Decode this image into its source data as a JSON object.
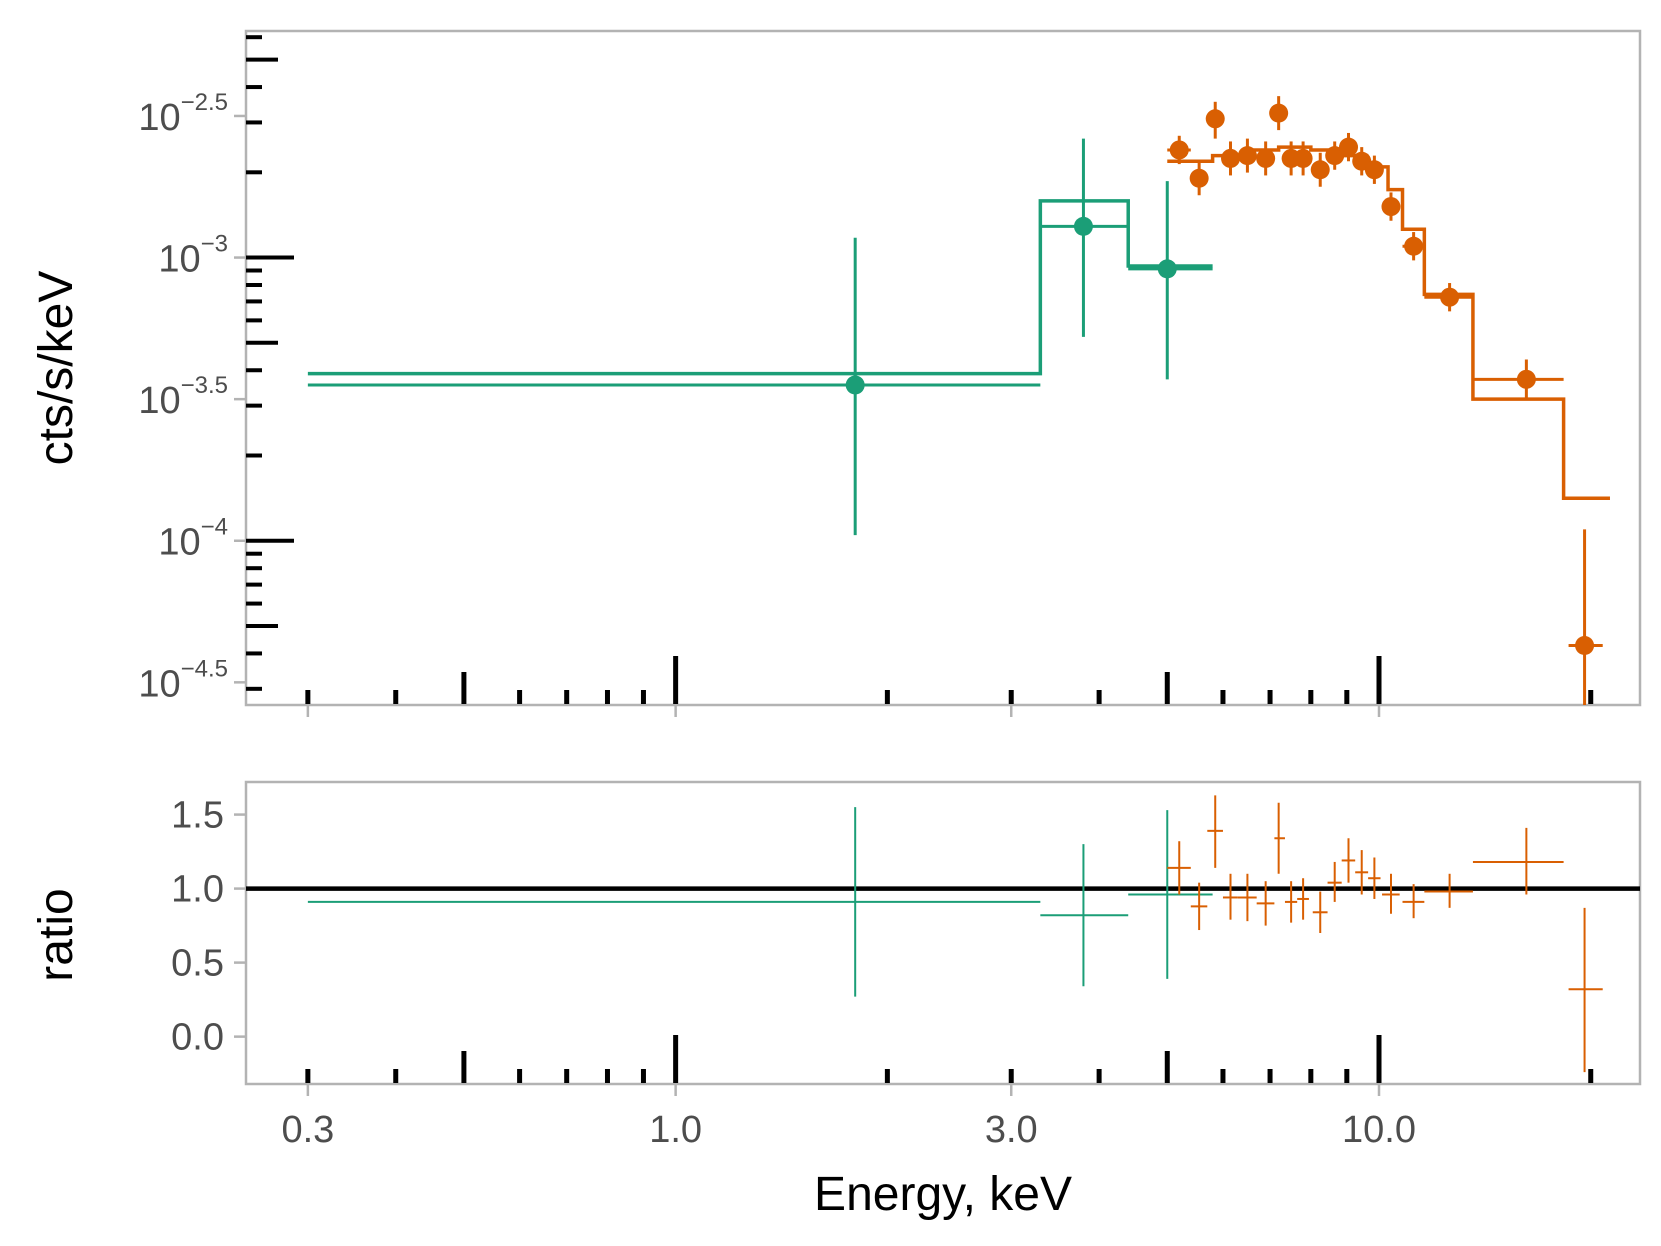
{
  "colors": {
    "green": "#1b9e77",
    "orange": "#d95f02",
    "black": "#000000",
    "frame": "#b3b3b3",
    "label": "#4d4d4d"
  },
  "chart_data": [
    {
      "type": "scatter",
      "panel": "spectrum",
      "ylabel": "cts/s/keV",
      "xscale": "log",
      "yscale": "log",
      "xlim": [
        0.245,
        23.5
      ],
      "ylim_log10": [
        -4.58,
        -2.2
      ],
      "yticks": [
        {
          "base": "10",
          "exp": "−2.5",
          "value": -2.5
        },
        {
          "base": "10",
          "exp": "−3",
          "value": -3
        },
        {
          "base": "10",
          "exp": "−3.5",
          "value": -3.5
        },
        {
          "base": "10",
          "exp": "−4",
          "value": -4
        },
        {
          "base": "10",
          "exp": "−4.5",
          "value": -4.5
        }
      ],
      "series": [
        {
          "name": "green",
          "points": [
            {
              "x": 1.8,
              "y": -3.45,
              "xlo": 0.3,
              "xhi": 3.3,
              "ylo": -3.98,
              "yhi": -2.93
            },
            {
              "x": 3.8,
              "y": -2.89,
              "xlo": 3.3,
              "xhi": 4.4,
              "ylo": -3.28,
              "yhi": -2.58
            },
            {
              "x": 5.0,
              "y": -3.04,
              "xlo": 4.4,
              "xhi": 5.8,
              "ylo": -3.43,
              "yhi": -2.73
            }
          ],
          "model_steps": [
            [
              0.3,
              3.3,
              -3.41
            ],
            [
              3.3,
              4.4,
              -2.8
            ],
            [
              4.4,
              5.8,
              -3.03
            ]
          ]
        },
        {
          "name": "orange",
          "points": [
            {
              "x": 5.2,
              "y": -2.62,
              "xlo": 5.0,
              "xhi": 5.4,
              "ylo": -2.67,
              "yhi": -2.57
            },
            {
              "x": 5.55,
              "y": -2.72,
              "xlo": 5.4,
              "xhi": 5.7,
              "ylo": -2.78,
              "yhi": -2.66
            },
            {
              "x": 5.85,
              "y": -2.51,
              "xlo": 5.7,
              "xhi": 6.0,
              "ylo": -2.58,
              "yhi": -2.45
            },
            {
              "x": 6.15,
              "y": -2.65,
              "xlo": 6.0,
              "xhi": 6.3,
              "ylo": -2.71,
              "yhi": -2.59
            },
            {
              "x": 6.5,
              "y": -2.64,
              "xlo": 6.3,
              "xhi": 6.7,
              "ylo": -2.7,
              "yhi": -2.58
            },
            {
              "x": 6.9,
              "y": -2.65,
              "xlo": 6.7,
              "xhi": 7.1,
              "ylo": -2.71,
              "yhi": -2.59
            },
            {
              "x": 7.2,
              "y": -2.49,
              "xlo": 7.1,
              "xhi": 7.35,
              "ylo": -2.55,
              "yhi": -2.43
            },
            {
              "x": 7.5,
              "y": -2.65,
              "xlo": 7.35,
              "xhi": 7.65,
              "ylo": -2.71,
              "yhi": -2.59
            },
            {
              "x": 7.8,
              "y": -2.65,
              "xlo": 7.65,
              "xhi": 7.95,
              "ylo": -2.71,
              "yhi": -2.59
            },
            {
              "x": 8.25,
              "y": -2.69,
              "xlo": 8.05,
              "xhi": 8.45,
              "ylo": -2.75,
              "yhi": -2.63
            },
            {
              "x": 8.65,
              "y": -2.64,
              "xlo": 8.45,
              "xhi": 8.85,
              "ylo": -2.69,
              "yhi": -2.59
            },
            {
              "x": 9.05,
              "y": -2.61,
              "xlo": 8.85,
              "xhi": 9.25,
              "ylo": -2.66,
              "yhi": -2.56
            },
            {
              "x": 9.45,
              "y": -2.66,
              "xlo": 9.25,
              "xhi": 9.65,
              "ylo": -2.71,
              "yhi": -2.61
            },
            {
              "x": 9.85,
              "y": -2.69,
              "xlo": 9.65,
              "xhi": 10.05,
              "ylo": -2.74,
              "yhi": -2.64
            },
            {
              "x": 10.4,
              "y": -2.82,
              "xlo": 10.1,
              "xhi": 10.7,
              "ylo": -2.87,
              "yhi": -2.77
            },
            {
              "x": 11.2,
              "y": -2.96,
              "xlo": 10.8,
              "xhi": 11.6,
              "ylo": -3.01,
              "yhi": -2.91
            },
            {
              "x": 12.6,
              "y": -3.14,
              "xlo": 11.6,
              "xhi": 13.6,
              "ylo": -3.19,
              "yhi": -3.09
            },
            {
              "x": 16.2,
              "y": -3.43,
              "xlo": 13.6,
              "xhi": 18.3,
              "ylo": -3.5,
              "yhi": -3.36
            },
            {
              "x": 19.6,
              "y": -4.37,
              "xlo": 18.6,
              "xhi": 20.8,
              "ylo": -4.58,
              "yhi": -3.96
            }
          ],
          "model_steps": [
            [
              5.0,
              5.8,
              -2.66
            ],
            [
              5.8,
              6.5,
              -2.64
            ],
            [
              6.5,
              7.2,
              -2.62
            ],
            [
              7.2,
              8.0,
              -2.61
            ],
            [
              8.0,
              8.8,
              -2.62
            ],
            [
              8.8,
              9.6,
              -2.64
            ],
            [
              9.6,
              10.3,
              -2.68
            ],
            [
              10.3,
              10.8,
              -2.76
            ],
            [
              10.8,
              11.6,
              -2.9
            ],
            [
              11.6,
              13.6,
              -3.13
            ],
            [
              13.6,
              18.3,
              -3.5
            ],
            [
              18.3,
              21.3,
              -3.85
            ]
          ]
        }
      ]
    },
    {
      "type": "scatter",
      "panel": "ratio",
      "ylabel": "ratio",
      "xlabel": "Energy, keV",
      "ylim": [
        -0.32,
        1.72
      ],
      "yticks": [
        "1.5",
        "1.0",
        "0.5",
        "0.0"
      ],
      "reference_line": 1.0,
      "xticks": [
        "0.3",
        "1.0",
        "3.0",
        "10.0"
      ],
      "series": [
        {
          "name": "green",
          "points": [
            {
              "x": 1.8,
              "y": 0.91,
              "xlo": 0.3,
              "xhi": 3.3,
              "ylo": 0.27,
              "yhi": 1.55
            },
            {
              "x": 3.8,
              "y": 0.82,
              "xlo": 3.3,
              "xhi": 4.4,
              "ylo": 0.34,
              "yhi": 1.3
            },
            {
              "x": 5.0,
              "y": 0.96,
              "xlo": 4.4,
              "xhi": 5.8,
              "ylo": 0.39,
              "yhi": 1.53
            }
          ]
        },
        {
          "name": "orange",
          "points": [
            {
              "x": 5.2,
              "y": 1.14,
              "xlo": 5.0,
              "xhi": 5.4,
              "ylo": 0.96,
              "yhi": 1.32
            },
            {
              "x": 5.55,
              "y": 0.88,
              "xlo": 5.4,
              "xhi": 5.7,
              "ylo": 0.72,
              "yhi": 1.04
            },
            {
              "x": 5.85,
              "y": 1.39,
              "xlo": 5.7,
              "xhi": 6.0,
              "ylo": 1.14,
              "yhi": 1.63
            },
            {
              "x": 6.15,
              "y": 0.94,
              "xlo": 6.0,
              "xhi": 6.3,
              "ylo": 0.79,
              "yhi": 1.1
            },
            {
              "x": 6.5,
              "y": 0.94,
              "xlo": 6.3,
              "xhi": 6.7,
              "ylo": 0.78,
              "yhi": 1.1
            },
            {
              "x": 6.9,
              "y": 0.9,
              "xlo": 6.7,
              "xhi": 7.1,
              "ylo": 0.75,
              "yhi": 1.05
            },
            {
              "x": 7.2,
              "y": 1.34,
              "xlo": 7.1,
              "xhi": 7.35,
              "ylo": 1.1,
              "yhi": 1.58
            },
            {
              "x": 7.5,
              "y": 0.91,
              "xlo": 7.35,
              "xhi": 7.65,
              "ylo": 0.77,
              "yhi": 1.05
            },
            {
              "x": 7.8,
              "y": 0.93,
              "xlo": 7.65,
              "xhi": 7.95,
              "ylo": 0.79,
              "yhi": 1.07
            },
            {
              "x": 8.25,
              "y": 0.84,
              "xlo": 8.05,
              "xhi": 8.45,
              "ylo": 0.7,
              "yhi": 0.98
            },
            {
              "x": 8.65,
              "y": 1.04,
              "xlo": 8.45,
              "xhi": 8.85,
              "ylo": 0.91,
              "yhi": 1.18
            },
            {
              "x": 9.05,
              "y": 1.19,
              "xlo": 8.85,
              "xhi": 9.25,
              "ylo": 1.04,
              "yhi": 1.34
            },
            {
              "x": 9.45,
              "y": 1.11,
              "xlo": 9.25,
              "xhi": 9.65,
              "ylo": 0.96,
              "yhi": 1.26
            },
            {
              "x": 9.85,
              "y": 1.07,
              "xlo": 9.65,
              "xhi": 10.05,
              "ylo": 0.93,
              "yhi": 1.21
            },
            {
              "x": 10.4,
              "y": 0.96,
              "xlo": 10.1,
              "xhi": 10.7,
              "ylo": 0.83,
              "yhi": 1.1
            },
            {
              "x": 11.2,
              "y": 0.91,
              "xlo": 10.8,
              "xhi": 11.6,
              "ylo": 0.8,
              "yhi": 1.03
            },
            {
              "x": 12.6,
              "y": 0.98,
              "xlo": 11.6,
              "xhi": 13.6,
              "ylo": 0.87,
              "yhi": 1.1
            },
            {
              "x": 16.2,
              "y": 1.18,
              "xlo": 13.6,
              "xhi": 18.3,
              "ylo": 0.96,
              "yhi": 1.41
            },
            {
              "x": 19.6,
              "y": 0.32,
              "xlo": 18.6,
              "xhi": 20.8,
              "ylo": -0.24,
              "yhi": 0.87
            }
          ]
        }
      ]
    }
  ],
  "rug": {
    "x_minor": [
      0.3,
      0.4,
      0.6,
      0.7,
      0.8,
      0.9,
      2.0,
      3.0,
      4.0,
      6.0,
      7.0,
      8.0,
      9.0,
      20.0
    ],
    "x_mid": [
      0.5,
      5.0
    ],
    "x_major": [
      1.0,
      10.0
    ]
  }
}
